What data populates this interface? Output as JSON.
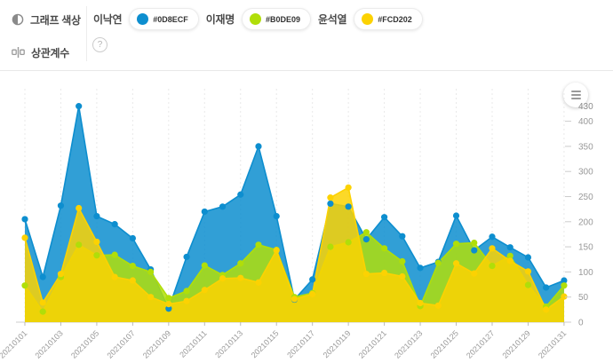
{
  "header": {
    "graph_color_label": "그래프 색상",
    "correlation_label": "상관계수",
    "help_label": "?",
    "legend": [
      {
        "name": "이낙연",
        "hex": "#0D8ECF"
      },
      {
        "name": "이재명",
        "hex": "#B0DE09"
      },
      {
        "name": "윤석열",
        "hex": "#FCD202"
      }
    ]
  },
  "chart_data": {
    "type": "area",
    "title": "",
    "x": [
      "20210101",
      "20210102",
      "20210103",
      "20210104",
      "20210105",
      "20210106",
      "20210107",
      "20210108",
      "20210109",
      "20210110",
      "20210111",
      "20210112",
      "20210113",
      "20210114",
      "20210115",
      "20210116",
      "20210117",
      "20210118",
      "20210119",
      "20210120",
      "20210121",
      "20210122",
      "20210123",
      "20210124",
      "20210125",
      "20210126",
      "20210127",
      "20210128",
      "20210129",
      "20210130",
      "20210131"
    ],
    "x_tick_every": 2,
    "series": [
      {
        "name": "이낙연",
        "color": "#0D8ECF",
        "values": [
          205,
          90,
          232,
          430,
          211,
          195,
          167,
          105,
          27,
          130,
          220,
          230,
          254,
          350,
          211,
          45,
          85,
          236,
          230,
          165,
          209,
          171,
          108,
          120,
          212,
          143,
          170,
          149,
          129,
          69,
          83
        ]
      },
      {
        "name": "이재명",
        "color": "#B0DE09",
        "values": [
          73,
          21,
          90,
          154,
          133,
          134,
          112,
          100,
          48,
          62,
          113,
          94,
          117,
          154,
          144,
          50,
          58,
          150,
          159,
          179,
          147,
          121,
          32,
          118,
          156,
          158,
          112,
          132,
          74,
          31,
          73
        ]
      },
      {
        "name": "윤석열",
        "color": "#FCD202",
        "values": [
          168,
          39,
          96,
          227,
          160,
          90,
          83,
          50,
          36,
          42,
          64,
          87,
          88,
          79,
          143,
          46,
          56,
          248,
          268,
          96,
          98,
          91,
          38,
          33,
          117,
          97,
          147,
          122,
          101,
          25,
          51
        ]
      }
    ],
    "ylim": [
      0,
      430
    ],
    "yticks": [
      0,
      50,
      100,
      150,
      200,
      250,
      300,
      350,
      400
    ],
    "ymax_label": "430",
    "grid": "vertical-dashed",
    "legend_position": "top",
    "axis_color": "#cccccc",
    "label_color": "#999999"
  }
}
